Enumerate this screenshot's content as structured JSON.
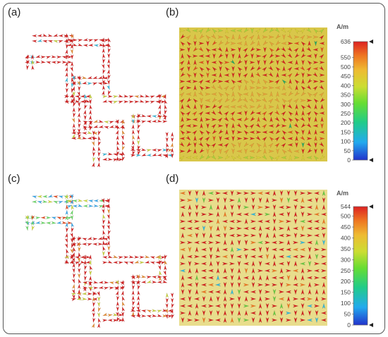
{
  "panels": [
    {
      "id": "a",
      "label": "(a)",
      "type": "structure",
      "variant": 1
    },
    {
      "id": "b",
      "label": "(b)",
      "type": "pattern",
      "variant": 1
    },
    {
      "id": "c",
      "label": "(c)",
      "type": "structure",
      "variant": 2
    },
    {
      "id": "d",
      "label": "(d)",
      "type": "pattern",
      "variant": 2
    }
  ],
  "colorbars": [
    {
      "unit": "A/m",
      "max_label": "636",
      "ticks": [
        "550",
        "500",
        "450",
        "400",
        "350",
        "300",
        "250",
        "200",
        "150",
        "100",
        "50",
        "0"
      ]
    },
    {
      "unit": "A/m",
      "max_label": "544",
      "ticks": [
        "500",
        "450",
        "400",
        "350",
        "300",
        "250",
        "200",
        "150",
        "100",
        "50",
        "0"
      ]
    }
  ],
  "colors": {
    "frame": "#555555",
    "scale": [
      "#2233cc",
      "#22aaee",
      "#22cc88",
      "#66dd33",
      "#ccdd33",
      "#eebb33",
      "#ee7722",
      "#dd2222"
    ],
    "arrow_dark": "#cc1f1f"
  }
}
